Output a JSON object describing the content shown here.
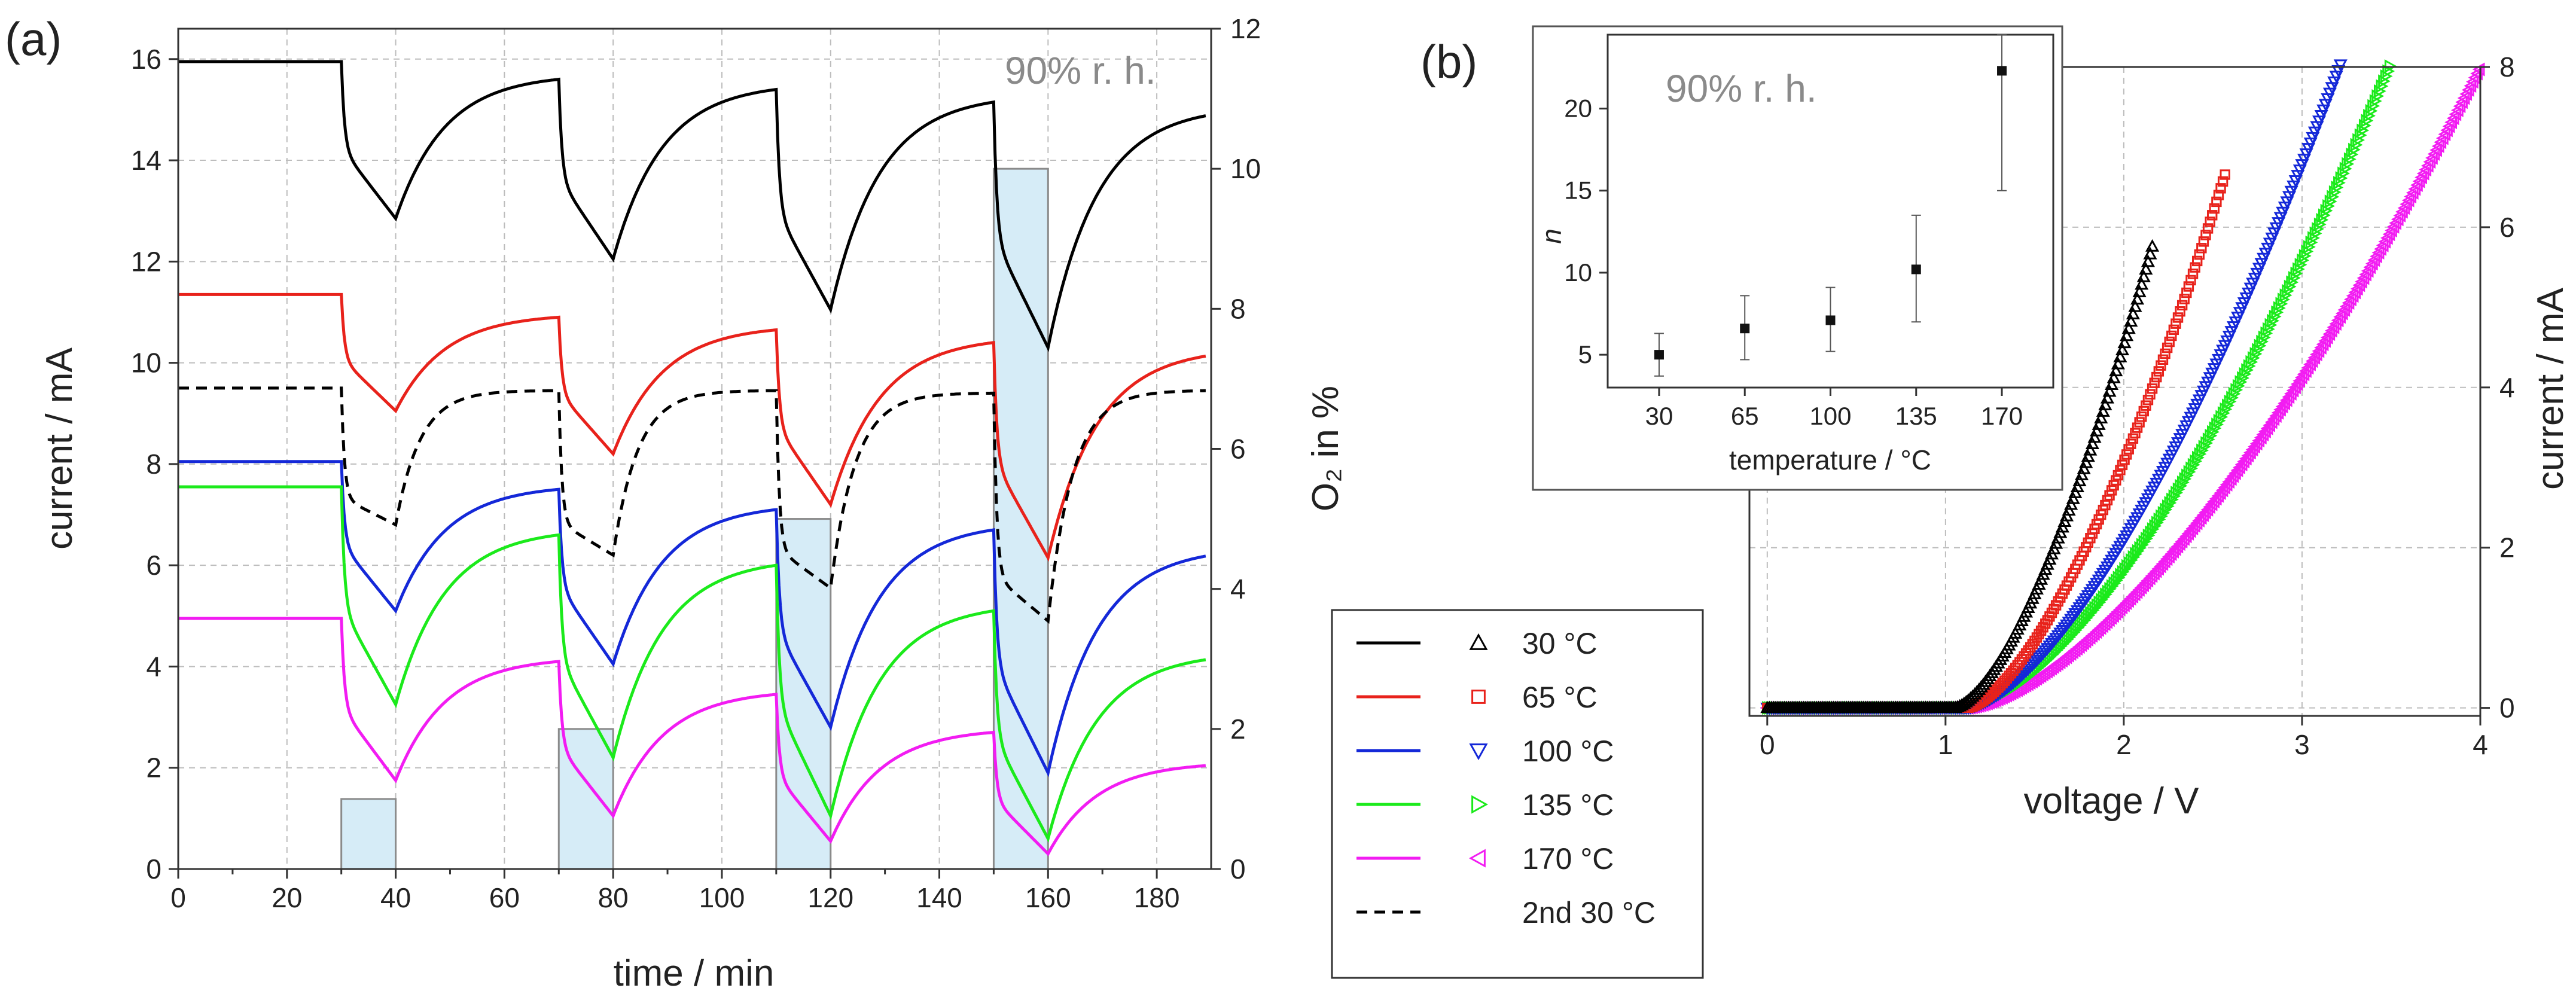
{
  "panels": {
    "a": "(a)",
    "b": "(b)"
  },
  "colors": {
    "30": "#000000",
    "65": "#e8221b",
    "100": "#1428d8",
    "135": "#1bea1b",
    "170": "#f21cf2",
    "second30": "#000000",
    "o2_fill": "#d6ecf7",
    "o2_edge": "#8a8a8a"
  },
  "chart_data": [
    {
      "type": "line",
      "panel": "a",
      "annotation": "90% r. h.",
      "xlabel": "time / min",
      "ylabel": "current / mA",
      "ylabel_right": "O₂ in %",
      "xlim": [
        0,
        190
      ],
      "ylim": [
        0,
        16.6
      ],
      "ylim_right": [
        0,
        12
      ],
      "xticks": [
        0,
        20,
        40,
        60,
        80,
        100,
        120,
        140,
        160,
        180
      ],
      "yticks": [
        0,
        2,
        4,
        6,
        8,
        10,
        12,
        14,
        16
      ],
      "yticks_right": [
        0,
        2,
        4,
        6,
        8,
        10,
        12
      ],
      "grid": true,
      "o2_steps": [
        {
          "start": 30,
          "end": 40,
          "value": 1.0
        },
        {
          "start": 70,
          "end": 80,
          "value": 2.0
        },
        {
          "start": 110,
          "end": 120,
          "value": 5.0
        },
        {
          "start": 150,
          "end": 160,
          "value": 10.0
        }
      ],
      "series": [
        {
          "name": "30 °C",
          "style": "solid",
          "baseline": 15.95,
          "minima": [
            12.85,
            12.05,
            11.05,
            10.3
          ],
          "peaks": [
            15.6,
            15.4,
            15.15
          ],
          "end": 14.9
        },
        {
          "name": "65 °C",
          "style": "solid",
          "baseline": 11.35,
          "minima": [
            9.05,
            8.2,
            7.2,
            6.15
          ],
          "peaks": [
            10.9,
            10.65,
            10.4
          ],
          "end": 10.15
        },
        {
          "name": "2nd 30 °C",
          "style": "dashed",
          "baseline": 9.5,
          "minima": [
            6.8,
            6.2,
            5.55,
            4.9
          ],
          "peaks": [
            9.45,
            9.45,
            9.4
          ],
          "end": 9.45
        },
        {
          "name": "100 °C",
          "style": "solid",
          "baseline": 8.05,
          "minima": [
            5.1,
            4.05,
            2.8,
            1.9
          ],
          "peaks": [
            7.5,
            7.1,
            6.7
          ],
          "end": 6.2
        },
        {
          "name": "135 °C",
          "style": "solid",
          "baseline": 7.55,
          "minima": [
            3.25,
            2.2,
            1.05,
            0.6
          ],
          "peaks": [
            6.6,
            6.0,
            5.1
          ],
          "end": 4.15
        },
        {
          "name": "170 °C",
          "style": "solid",
          "baseline": 4.95,
          "minima": [
            1.75,
            1.05,
            0.55,
            0.3
          ],
          "peaks": [
            4.1,
            3.45,
            2.7
          ],
          "end": 2.05
        }
      ]
    },
    {
      "type": "scatter",
      "panel": "b",
      "xlabel": "voltage / V",
      "ylabel": "current / mA",
      "xlim": [
        -0.1,
        4
      ],
      "ylim": [
        -0.1,
        8
      ],
      "xticks": [
        0,
        1,
        2,
        3,
        4
      ],
      "yticks": [
        0,
        2,
        4,
        6,
        8
      ],
      "grid": true,
      "series": [
        {
          "name": "30 °C",
          "marker": "triangle-up",
          "onset": 1.05,
          "k": 4.9,
          "xmax": 2.17
        },
        {
          "name": "65 °C",
          "marker": "square",
          "onset": 1.12,
          "k": 3.75,
          "xmax": 2.58
        },
        {
          "name": "100 °C",
          "marker": "triangle-down",
          "onset": 1.12,
          "k": 2.55,
          "xmax": 3.27
        },
        {
          "name": "135 °C",
          "marker": "triangle-right",
          "onset": 1.12,
          "k": 2.1,
          "xmax": 3.67
        },
        {
          "name": "170 °C",
          "marker": "triangle-left",
          "onset": 1.12,
          "k": 1.55,
          "xmax": 4.0
        }
      ]
    },
    {
      "type": "scatter",
      "panel": "b-inset",
      "annotation": "90% r. h.",
      "xlabel": "temperature / °C",
      "ylabel": "n",
      "categories": [
        "30",
        "65",
        "100",
        "135",
        "170"
      ],
      "values": [
        5.0,
        6.6,
        7.1,
        10.2,
        22.3
      ],
      "errors_low": [
        3.7,
        4.7,
        5.2,
        7.0,
        15.0
      ],
      "errors_high": [
        6.3,
        8.6,
        9.1,
        13.5,
        24.5
      ],
      "ylim": [
        3,
        24.5
      ],
      "yticks": [
        5,
        10,
        15,
        20
      ]
    }
  ],
  "legend": {
    "entries": [
      "30 °C",
      "65 °C",
      "100 °C",
      "135 °C",
      "170 °C",
      "2nd 30 °C"
    ]
  }
}
